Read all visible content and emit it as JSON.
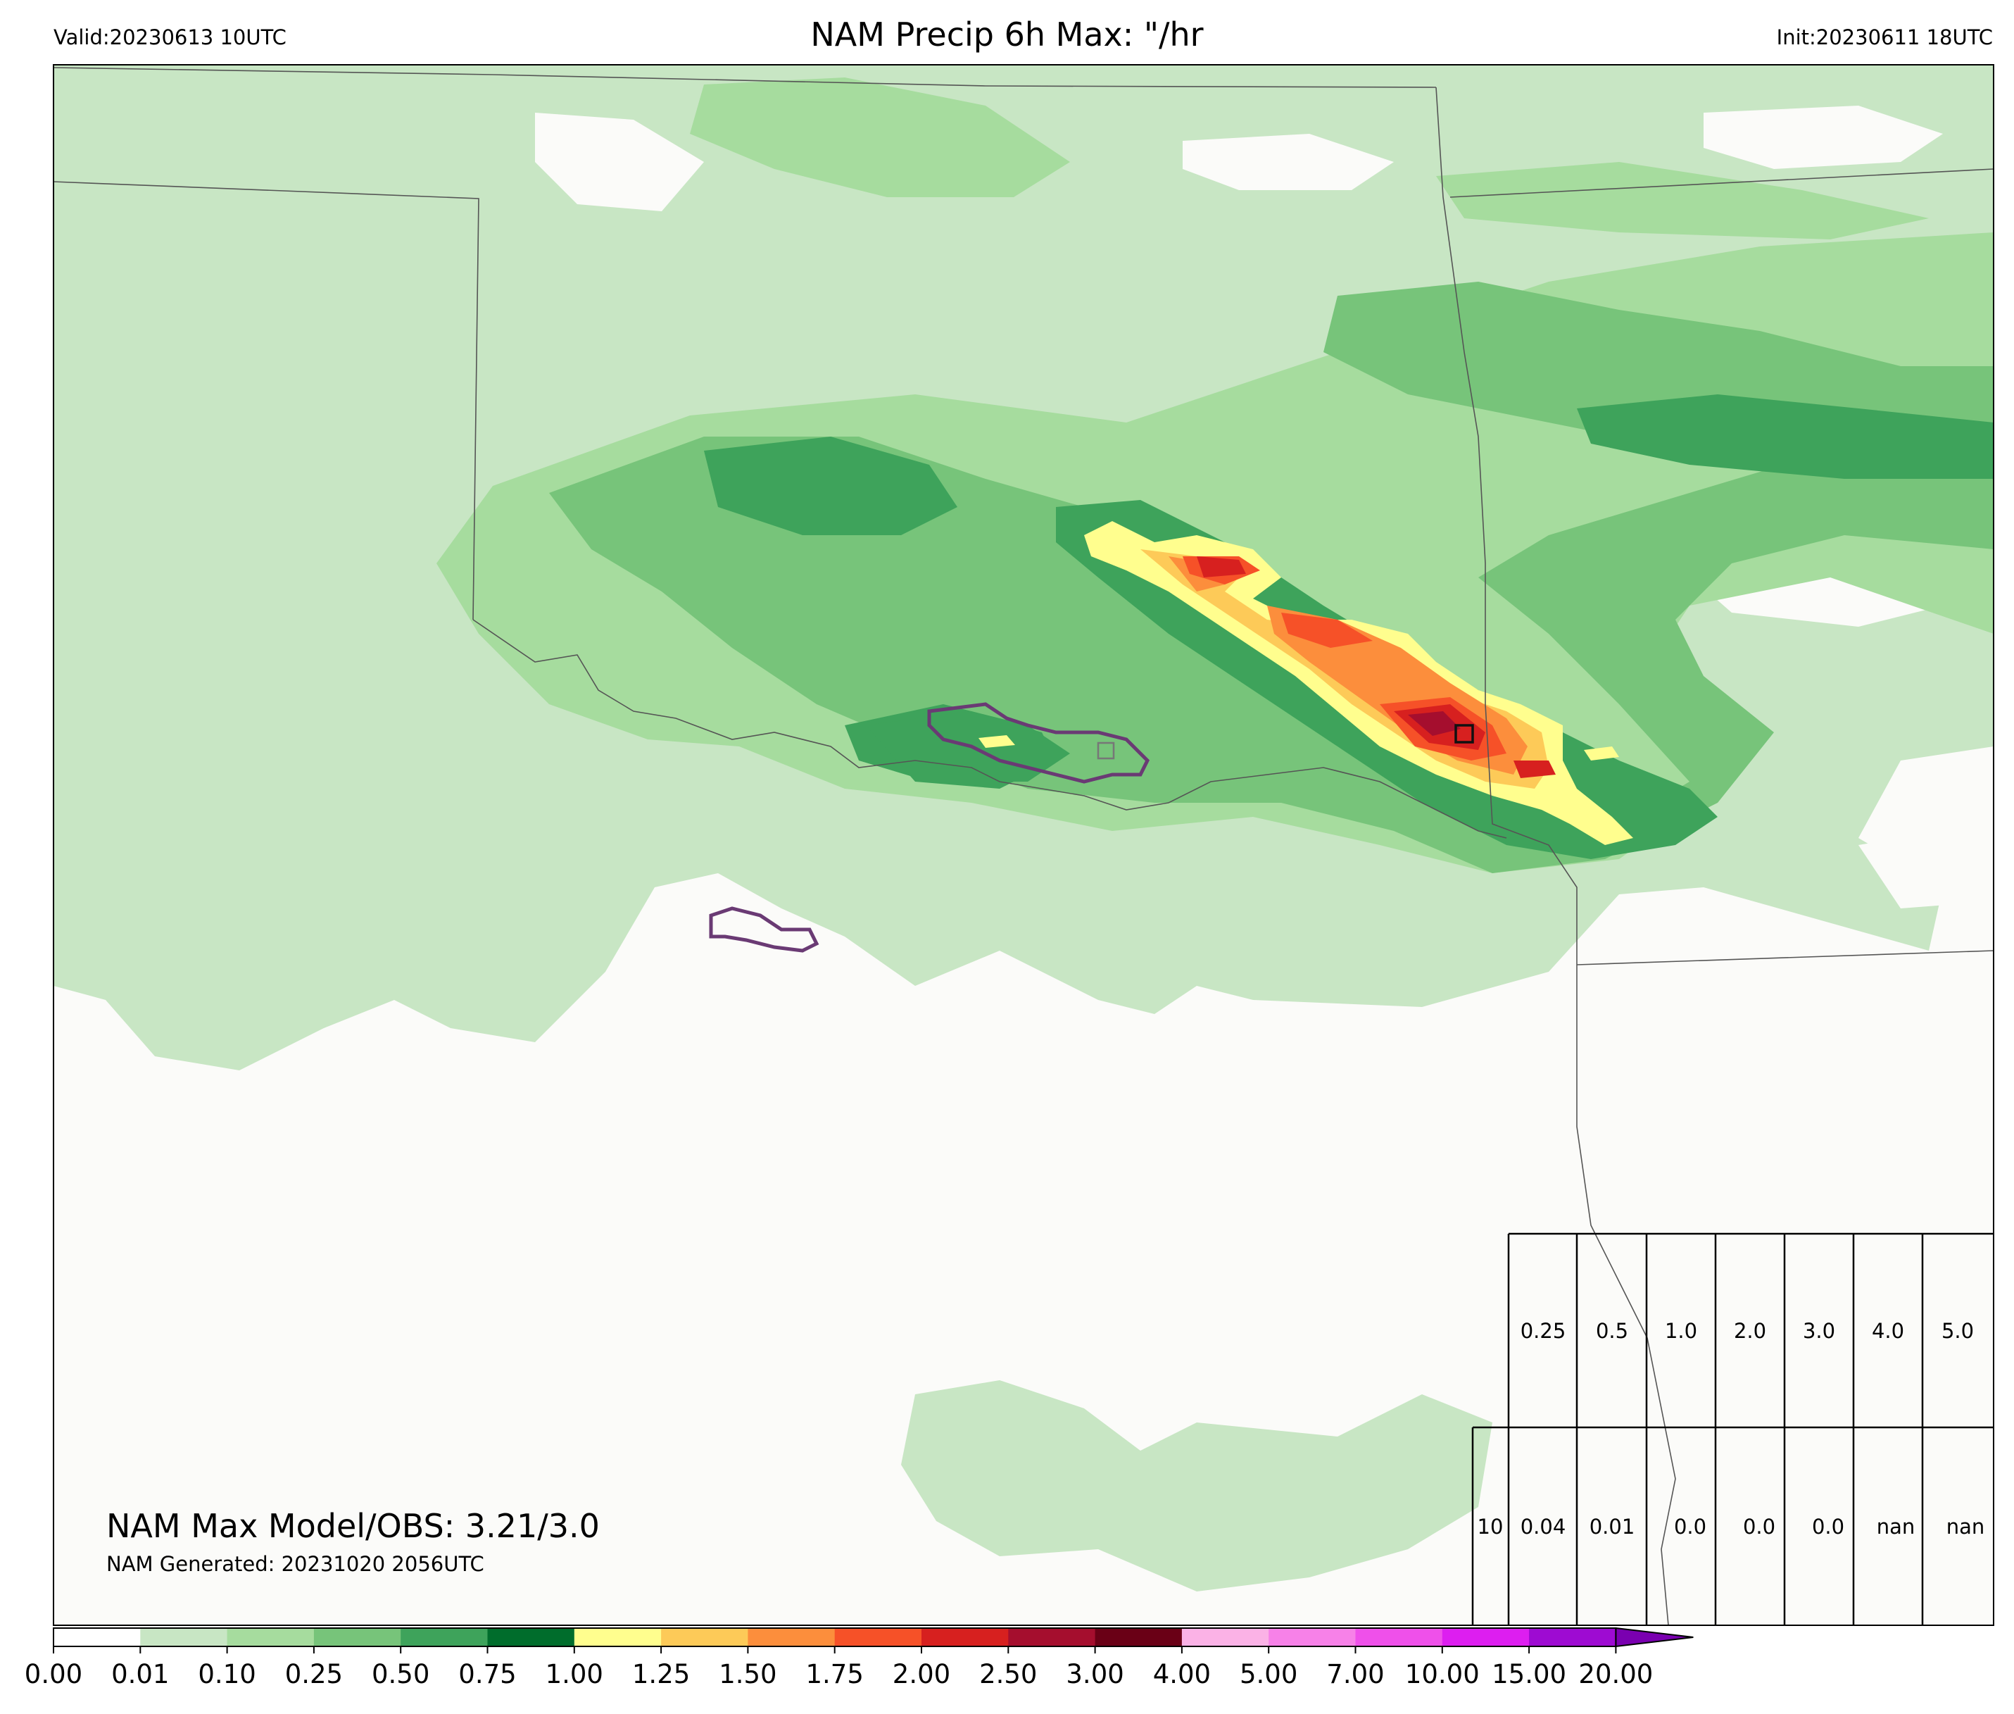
{
  "header": {
    "valid": "Valid:20230613 10UTC",
    "title": "NAM Precip 6h Max: \"/hr",
    "init": "Init:20230611 18UTC"
  },
  "stats": {
    "max_line": "NAM Max Model/OBS: 3.21/3.0",
    "generated": "NAM Generated: 20231020 2056UTC"
  },
  "table": {
    "thresholds": [
      "0.25",
      "0.5",
      "1.0",
      "2.0",
      "3.0",
      "4.0",
      "5.0"
    ],
    "row_label": "10",
    "values": [
      "0.04",
      "0.01",
      "0.0",
      "0.0",
      "0.0",
      "nan",
      "nan"
    ]
  },
  "colorbar": {
    "ticks": [
      "0.00",
      "0.01",
      "0.10",
      "0.25",
      "0.50",
      "0.75",
      "1.00",
      "1.25",
      "1.50",
      "1.75",
      "2.00",
      "2.50",
      "3.00",
      "4.00",
      "5.00",
      "7.00",
      "10.00",
      "15.00",
      "20.00"
    ],
    "colors": [
      "#ffffff",
      "#c8e6c4",
      "#a6dc9e",
      "#77c47a",
      "#3ea35b",
      "#006d2c",
      "#fffe8e",
      "#fdca58",
      "#fc8e3c",
      "#f65128",
      "#d7201f",
      "#a50e2e",
      "#6a0016",
      "#fbb2e6",
      "#f781e8",
      "#ef50ea",
      "#dd1ef0",
      "#9e0bd2",
      "#7a00b0"
    ],
    "extend_color": "#7a00b0"
  },
  "map_colors": {
    "background": "#fbfbf9",
    "borders": "#555555",
    "obs_contour": "#6a3a74"
  }
}
